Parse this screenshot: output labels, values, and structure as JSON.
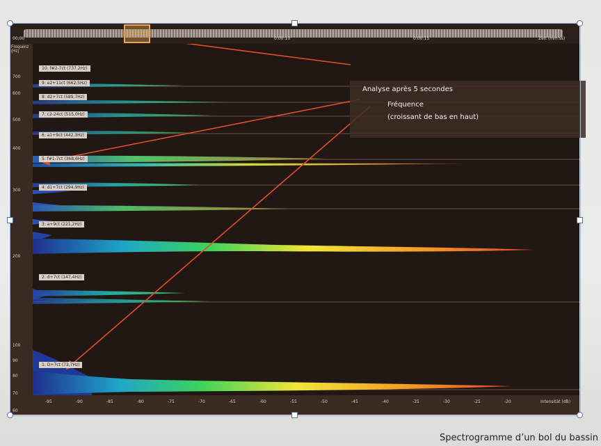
{
  "annotations": {
    "analysis": "Analyse après 5 secondes",
    "frequency_line1": "Fréquence",
    "frequency_line2": "(croissant de bas en haut)"
  },
  "caption": "Spectrogramme d’un bol du bassin",
  "time_axis": {
    "start": "00:00",
    "marks": [
      "0:00:10",
      "0:00:15"
    ],
    "end": "Zeit (mm:ss)"
  },
  "frequency_axis": {
    "title": "Frequenz (Hz)",
    "labels": [
      "700",
      "600",
      "500",
      "400",
      "300",
      "200",
      "100",
      "90",
      "80",
      "70",
      "60"
    ]
  },
  "bands": [
    {
      "label": "10: f#2-7ct (737.2Hz)"
    },
    {
      "label": "9: e2+11ct (662,5Hz)"
    },
    {
      "label": "8: d2+7ct (589,7Hz)"
    },
    {
      "label": "7: c2-24ct (515,0Hz)"
    },
    {
      "label": "6: a1+9ct (442,3Hz)"
    },
    {
      "label": "5: f#1-7ct (368,6Hz)"
    },
    {
      "label": "4: d1+7ct (294,9Hz)"
    },
    {
      "label": "3: a+9ct (221,2Hz)"
    },
    {
      "label": "2: d+7ct (147,4Hz)"
    },
    {
      "label": "1: D+7ct (73,7Hz)"
    }
  ],
  "level_axis": {
    "labels": [
      "-95",
      "-90",
      "-85",
      "-80",
      "-75",
      "-70",
      "-65",
      "-60",
      "-55",
      "-50",
      "-45",
      "-40",
      "-35",
      "-30",
      "-25",
      "-20"
    ],
    "title": "Intensität (dB)"
  }
}
